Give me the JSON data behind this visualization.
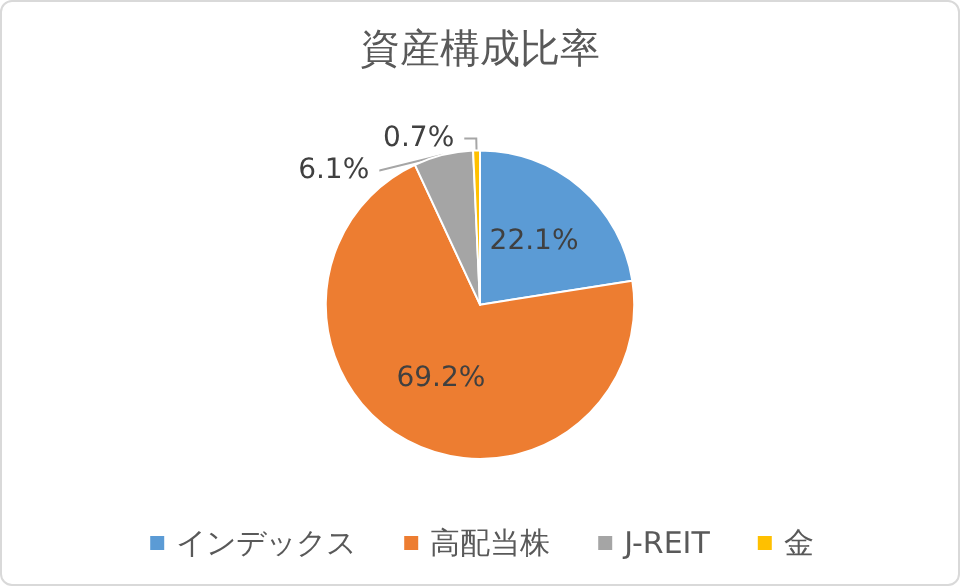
{
  "chart_data": {
    "type": "pie",
    "title": "資産構成比率",
    "categories": [
      "インデックス",
      "高配当株",
      "J-REIT",
      "金"
    ],
    "values": [
      22.1,
      69.2,
      6.1,
      0.7
    ],
    "colors": [
      "#5b9bd5",
      "#ed7d31",
      "#a5a5a5",
      "#ffc000"
    ],
    "value_labels": [
      "22.1%",
      "69.2%",
      "6.1%",
      "0.7%"
    ],
    "legend": "bottom"
  }
}
